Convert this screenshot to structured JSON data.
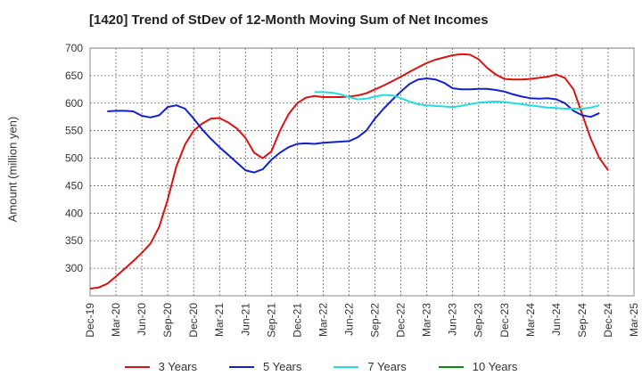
{
  "chart_data": {
    "type": "line",
    "title": "[1420]  Trend of StDev of 12-Month Moving Sum of Net Incomes",
    "ylabel": "Amount (million yen)",
    "xlabel": "",
    "ylim": [
      250,
      700
    ],
    "yticks": [
      300,
      350,
      400,
      450,
      500,
      550,
      600,
      650,
      700
    ],
    "xticks": [
      "Dec-19",
      "Mar-20",
      "Jun-20",
      "Sep-20",
      "Dec-20",
      "Mar-21",
      "Jun-21",
      "Sep-21",
      "Dec-21",
      "Mar-22",
      "Jun-22",
      "Sep-22",
      "Dec-22",
      "Mar-23",
      "Jun-23",
      "Sep-23",
      "Dec-23",
      "Mar-24",
      "Jun-24",
      "Sep-24",
      "Dec-24",
      "Mar-25"
    ],
    "grid": true,
    "legend_position": "bottom",
    "series": [
      {
        "name": "3 Years",
        "color": "#dd1111",
        "start_index": 0,
        "values": [
          263,
          265,
          272,
          285,
          299,
          313,
          328,
          345,
          375,
          425,
          485,
          525,
          550,
          563,
          572,
          573,
          565,
          554,
          537,
          510,
          500,
          512,
          550,
          580,
          600,
          610,
          613,
          611,
          611,
          611,
          612,
          614,
          618,
          625,
          632,
          640,
          648,
          657,
          665,
          673,
          679,
          683,
          687,
          689,
          688,
          680,
          664,
          652,
          644,
          643,
          643,
          644,
          646,
          648,
          652,
          646,
          625,
          580,
          535,
          500,
          478
        ]
      },
      {
        "name": "5 Years",
        "color": "#1122cc",
        "start_index": 2,
        "values": [
          585,
          586,
          586,
          585,
          577,
          574,
          578,
          593,
          596,
          590,
          572,
          552,
          535,
          520,
          506,
          492,
          478,
          474,
          480,
          497,
          510,
          520,
          526,
          527,
          526,
          528,
          529,
          530,
          531,
          538,
          550,
          572,
          590,
          606,
          621,
          635,
          643,
          645,
          643,
          637,
          627,
          625,
          625,
          626,
          626,
          624,
          621,
          616,
          612,
          609,
          608,
          609,
          607,
          600,
          586,
          578,
          575,
          582
        ]
      },
      {
        "name": "7 Years",
        "color": "#22dddd",
        "start_index": 26,
        "values": [
          620,
          620,
          619,
          616,
          611,
          607,
          608,
          612,
          615,
          614,
          609,
          603,
          598,
          596,
          595,
          594,
          593,
          595,
          598,
          601,
          602,
          603,
          602,
          600,
          598,
          596,
          594,
          592,
          591,
          590,
          590,
          590,
          592,
          596
        ]
      },
      {
        "name": "10 Years",
        "color": "#118811",
        "start_index": 0,
        "values": []
      }
    ]
  }
}
